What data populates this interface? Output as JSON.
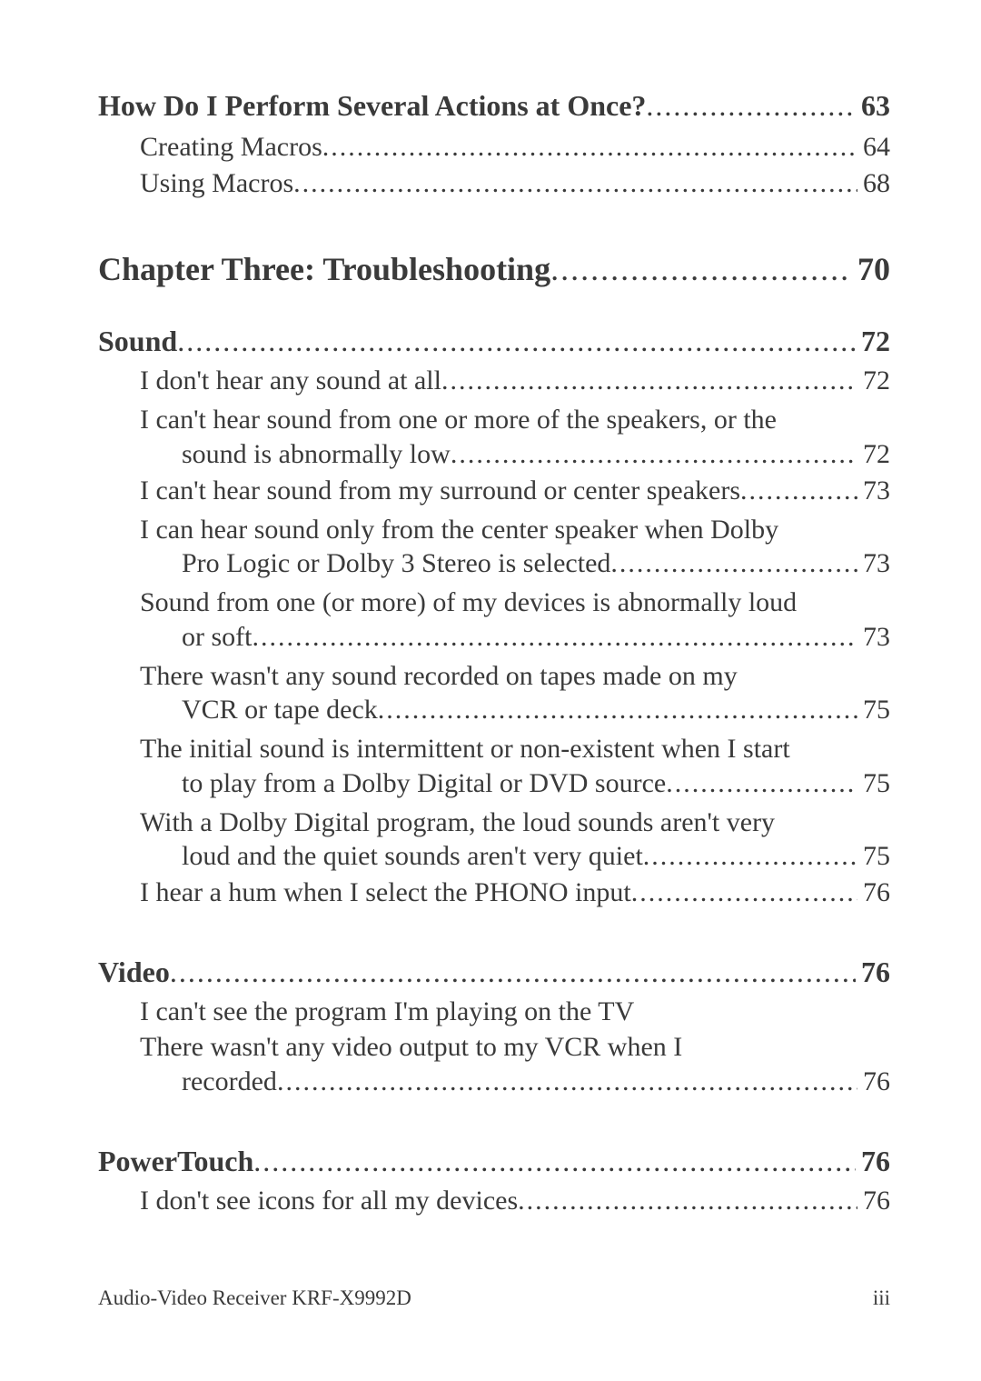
{
  "colors": {
    "text": "#3a3a3a",
    "bg": "#ffffff"
  },
  "typography": {
    "family": "Georgia, serif",
    "body_pt": 30,
    "h1_pt": 36,
    "h2_pt": 32
  },
  "entries": {
    "e0": {
      "label": "How Do I Perform Several Actions at Once?",
      "page": "63"
    },
    "e1": {
      "label": "Creating Macros",
      "page": "64"
    },
    "e2": {
      "label": "Using Macros",
      "page": "68"
    },
    "e3": {
      "label": "Chapter Three: Troubleshooting",
      "page": "70"
    },
    "e4": {
      "label": "Sound",
      "page": "72"
    },
    "e5": {
      "label": "I don't hear any sound at all",
      "page": "72"
    },
    "e6a": {
      "label": "I can't hear sound from one or more of the speakers, or the"
    },
    "e6b": {
      "label": "sound is abnormally low",
      "page": "72"
    },
    "e7": {
      "label": "I can't hear sound from my surround or center speakers",
      "page": "73"
    },
    "e8a": {
      "label": "I can hear sound only from the center speaker when Dolby"
    },
    "e8b": {
      "label": "Pro Logic or Dolby 3 Stereo is selected",
      "page": "73"
    },
    "e9a": {
      "label": "Sound from one (or more) of my devices is abnormally loud"
    },
    "e9b": {
      "label": "or soft",
      "page": "73"
    },
    "e10a": {
      "label": "There wasn't any sound recorded on tapes made on  my"
    },
    "e10b": {
      "label": "VCR or tape deck",
      "page": "75"
    },
    "e11a": {
      "label": "The initial sound is intermittent or non-existent when I start"
    },
    "e11b": {
      "label": "to play from a Dolby Digital or DVD source",
      "page": "75"
    },
    "e12a": {
      "label": "With a Dolby Digital program, the loud sounds aren't very"
    },
    "e12b": {
      "label": "loud and the quiet sounds aren't very quiet",
      "page": "75"
    },
    "e13": {
      "label": "I hear a hum when I select the PHONO input",
      "page": "76"
    },
    "e14": {
      "label": "Video",
      "page": "76"
    },
    "e15": {
      "label": "I can't see the program I'm playing on the TV"
    },
    "e16a": {
      "label": "There wasn't any video output to my VCR when I"
    },
    "e16b": {
      "label": "recorded",
      "page": "76"
    },
    "e17": {
      "label": "PowerTouch",
      "page": "76"
    },
    "e18": {
      "label": "I don't see icons for all my devices",
      "page": "76"
    }
  },
  "footer": {
    "left": "Audio-Video Receiver KRF-X9992D",
    "right": "iii"
  }
}
